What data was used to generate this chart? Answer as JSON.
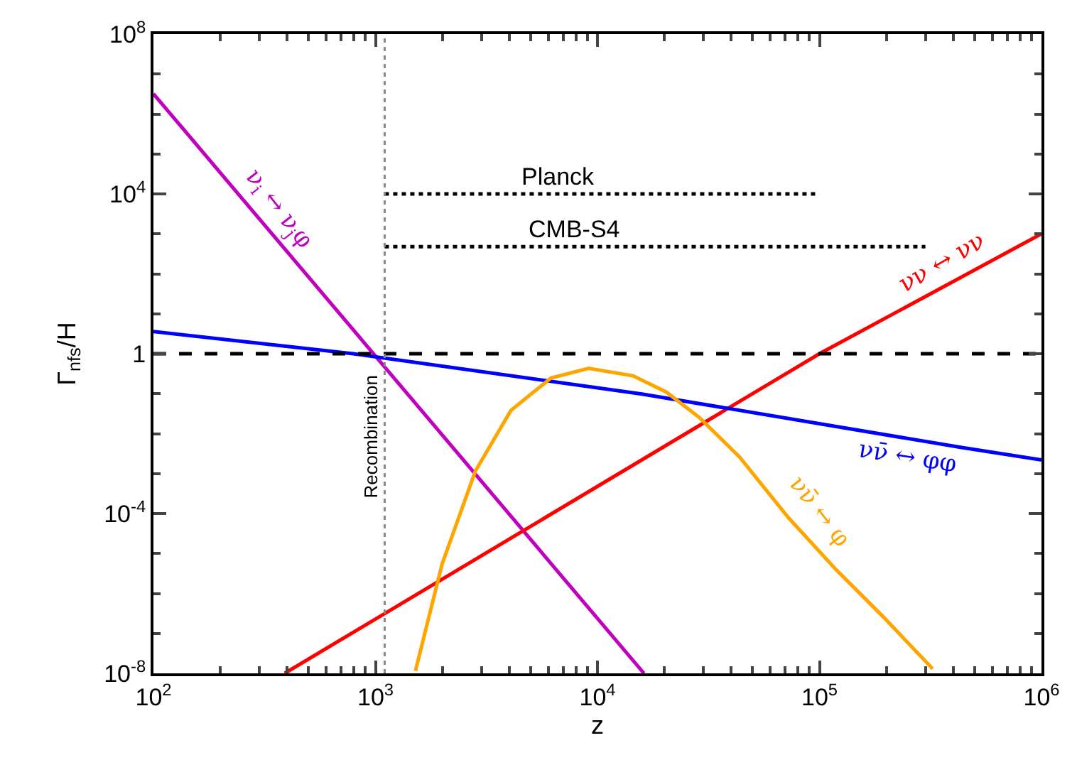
{
  "chart_data": {
    "type": "line",
    "xlabel": "z",
    "ylabel": "Γ$_{nfs}$/H",
    "log": "xy",
    "legend": false,
    "marker": "none",
    "xlim": [
      100,
      1000000
    ],
    "ylim": [
      1e-08,
      100000000
    ],
    "xticks": [
      {
        "value": 100,
        "label": "10$^{2}$"
      },
      {
        "value": 1000,
        "label": "10$^{3}$"
      },
      {
        "value": 10000,
        "label": "10$^{4}$"
      },
      {
        "value": 100000,
        "label": "10$^{5}$"
      },
      {
        "value": 1000000,
        "label": "10$^{6}$"
      }
    ],
    "yticks": [
      {
        "value": 1e-08,
        "label": "10$^{-8}$"
      },
      {
        "value": 0.0001,
        "label": "10$^{-4}$"
      },
      1,
      {
        "value": 10000,
        "label": "10$^{4}$"
      },
      {
        "value": 100000000,
        "label": "10$^{8}$"
      }
    ],
    "series": [
      {
        "name": "ν$_{i}$ ↔ ν$_{j}$φ",
        "color": "#bf00bf",
        "x": [
          100,
          16200
        ],
        "values": [
          3200000,
          1e-08
        ]
      },
      {
        "name": "νν ↔ νν",
        "color": "#ff0000",
        "x": [
          390,
          100000,
          1000000
        ],
        "values": [
          1e-08,
          1,
          1000
        ]
      },
      {
        "name": "νν̄ ↔ φφ",
        "color": "#0000ff",
        "x": [
          100,
          794,
          15850,
          436500,
          1000000
        ],
        "values": [
          3.6,
          1,
          0.098,
          0.0045,
          0.0022
        ]
      },
      {
        "name": "νν̄ ↔ φ",
        "color": "#ffa500",
        "x": [
          1514,
          1995,
          2818,
          4074,
          6166,
          9120,
          14450,
          20420,
          28840,
          43650,
          72440,
          117500,
          195000,
          323600
        ],
        "values": [
          1.15e-08,
          5.4e-06,
          0.00115,
          0.038,
          0.245,
          0.43,
          0.28,
          0.11,
          0.025,
          0.0026,
          7.9e-05,
          4.2e-06,
          2.5e-07,
          1.3e-08
        ]
      },
      {
        "name": "Planck",
        "color": "#000000",
        "line_style": "dotted",
        "x": [
          1100,
          100000
        ],
        "values": [
          10000,
          10000
        ]
      },
      {
        "name": "CMB-S4",
        "color": "#000000",
        "line_style": "dotted",
        "x": [
          1100,
          300000
        ],
        "values": [
          480,
          480
        ]
      }
    ],
    "ref_lines": [
      {
        "axis": "y",
        "value": 1,
        "color": "#000000",
        "line_style": "dashed"
      },
      {
        "axis": "x",
        "value": 1100,
        "label": "Recombination",
        "color": "#888888",
        "line_style": "dotted"
      }
    ]
  }
}
